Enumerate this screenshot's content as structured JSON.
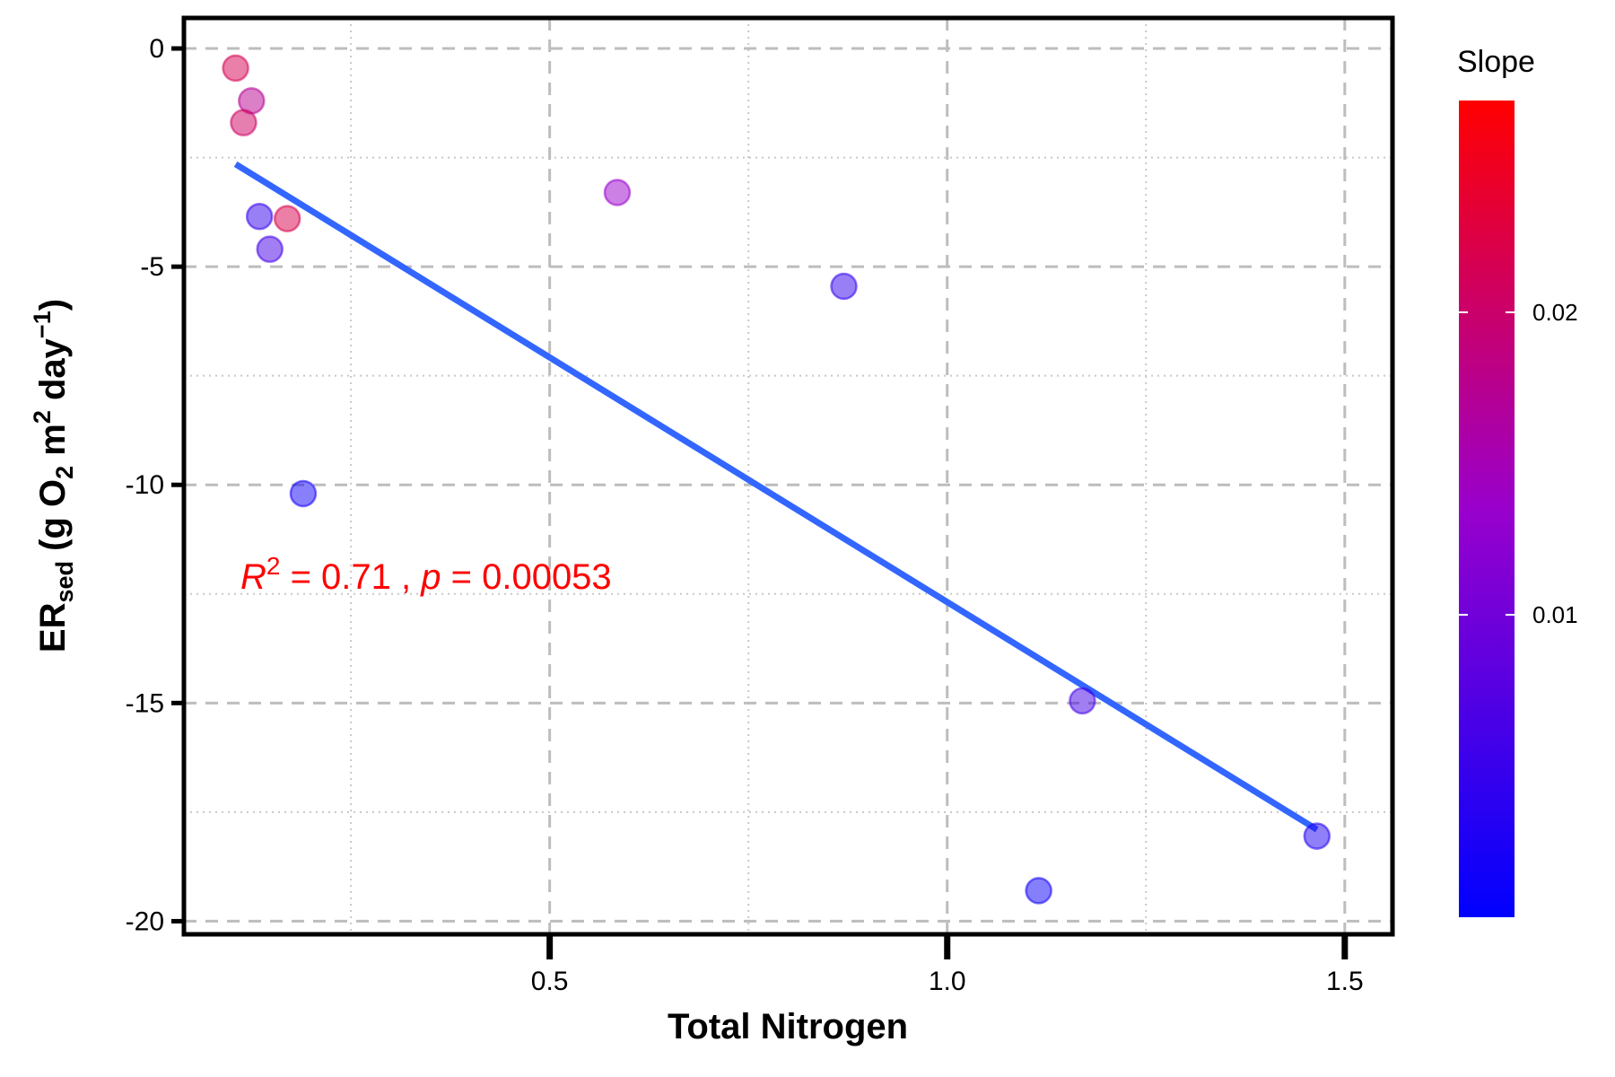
{
  "chart_data": {
    "type": "scatter",
    "xlabel": "Total Nitrogen",
    "ylabel": {
      "main": "ER",
      "sub": "sed",
      "rest_1": " (g O",
      "sub_2": "2",
      "rest_2": " m",
      "sup_1": "2",
      "rest_3": " day",
      "sup_2": "−1",
      "rest_4": ")"
    },
    "xlim": [
      0.04,
      1.56
    ],
    "ylim": [
      -20.3,
      0.7
    ],
    "xticks": [
      0.5,
      1.0,
      1.5
    ],
    "xtick_labels": [
      "0.5",
      "1.0",
      "1.5"
    ],
    "yticks": [
      0,
      -5,
      -10,
      -15,
      -20
    ],
    "ytick_labels": [
      "0",
      "-5",
      "-10",
      "-15",
      "-20"
    ],
    "grid": true,
    "points": [
      {
        "x": 0.105,
        "y": -0.45,
        "slope": 0.0215
      },
      {
        "x": 0.125,
        "y": -1.2,
        "slope": 0.0175
      },
      {
        "x": 0.115,
        "y": -1.7,
        "slope": 0.0205
      },
      {
        "x": 0.135,
        "y": -3.85,
        "slope": 0.0045
      },
      {
        "x": 0.17,
        "y": -3.9,
        "slope": 0.022
      },
      {
        "x": 0.148,
        "y": -4.6,
        "slope": 0.006
      },
      {
        "x": 0.19,
        "y": -10.2,
        "slope": 0.0015
      },
      {
        "x": 0.585,
        "y": -3.3,
        "slope": 0.0135
      },
      {
        "x": 0.87,
        "y": -5.45,
        "slope": 0.0045
      },
      {
        "x": 1.115,
        "y": -19.3,
        "slope": 0.0012
      },
      {
        "x": 1.17,
        "y": -14.95,
        "slope": 0.006
      },
      {
        "x": 1.465,
        "y": -18.05,
        "slope": 0.0028
      }
    ],
    "fit_line": {
      "x": [
        0.105,
        1.465
      ],
      "y": [
        -2.65,
        -17.9
      ],
      "color": "#3366ff"
    },
    "annotation": {
      "r_label": "R",
      "r_sup": "2",
      "r_value": " = 0.71 , ",
      "p_label": "p",
      "p_value": " = 0.00053",
      "color": "#ff0000"
    },
    "legend": {
      "title": "Slope",
      "placement": "right",
      "min": 0.0,
      "max": 0.027,
      "ticks": [
        0.01,
        0.02
      ],
      "tick_labels": [
        "0.01",
        "0.02"
      ],
      "low_color": "#0000ff",
      "high_color": "#ff0000"
    }
  }
}
